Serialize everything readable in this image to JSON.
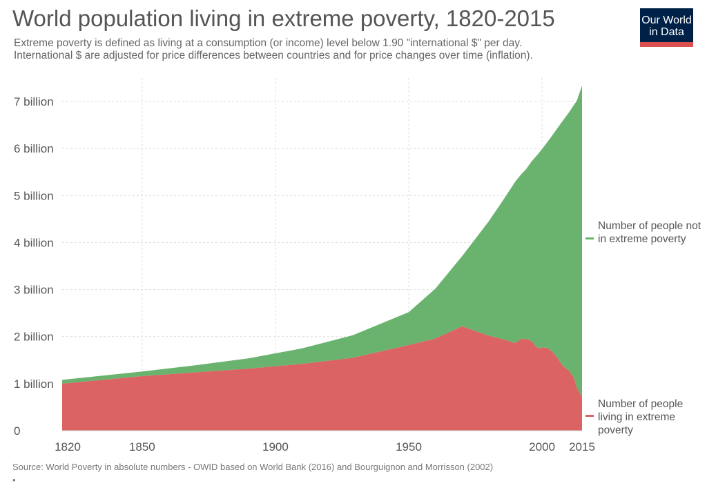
{
  "header": {
    "title": "World population living in extreme poverty, 1820-2015",
    "subtitle_line1": "Extreme poverty is defined as living at a consumption (or income) level below 1.90 \"international $\" per day.",
    "subtitle_line2": "International $ are adjusted for price differences between countries and for price changes over time (inflation)."
  },
  "logo": {
    "line1": "Our World",
    "line2": "in Data"
  },
  "footer": {
    "source": "Source: World Poverty in absolute numbers - OWID based on World Bank (2016) and Bourguignon and Morrisson (2002)",
    "bullet": "•"
  },
  "colors": {
    "not_poor": "#6ab36f",
    "poor": "#db6363",
    "grid": "#dddddd",
    "text": "#555555"
  },
  "chart_data": {
    "type": "area",
    "stacked": true,
    "title": "World population living in extreme poverty, 1820-2015",
    "xlabel": "",
    "ylabel": "",
    "xlim": [
      1820,
      2015
    ],
    "ylim": [
      0,
      7.5
    ],
    "x_ticks": [
      1820,
      1850,
      1900,
      1950,
      2000,
      2015
    ],
    "y_ticks": [
      0,
      1,
      2,
      3,
      4,
      5,
      6,
      7
    ],
    "y_tick_labels": [
      "0",
      "1 billion",
      "2 billion",
      "3 billion",
      "4 billion",
      "5 billion",
      "6 billion",
      "7 billion"
    ],
    "x": [
      1820,
      1850,
      1870,
      1890,
      1910,
      1929,
      1950,
      1960,
      1970,
      1980,
      1985,
      1990,
      1992,
      1994,
      1996,
      1998,
      1999,
      2000,
      2002,
      2004,
      2006,
      2008,
      2010,
      2012,
      2013,
      2015
    ],
    "series": [
      {
        "name": "Number of people living in extreme poverty",
        "legend": "Number of people living in extreme poverty",
        "color": "#db6363",
        "values": [
          1.0,
          1.16,
          1.24,
          1.32,
          1.42,
          1.55,
          1.82,
          1.96,
          2.22,
          2.02,
          1.95,
          1.86,
          1.95,
          1.95,
          1.91,
          1.77,
          1.75,
          1.77,
          1.76,
          1.67,
          1.53,
          1.36,
          1.28,
          1.12,
          0.92,
          0.71
        ]
      },
      {
        "name": "Number of people not in extreme poverty",
        "legend": "Number of people not in extreme poverty",
        "color": "#6ab36f",
        "values": [
          0.08,
          0.1,
          0.15,
          0.22,
          0.33,
          0.48,
          0.7,
          1.06,
          1.49,
          2.43,
          2.92,
          3.44,
          3.49,
          3.61,
          3.81,
          4.08,
          4.17,
          4.22,
          4.38,
          4.62,
          4.92,
          5.25,
          5.48,
          5.81,
          6.09,
          6.63
        ]
      }
    ]
  }
}
